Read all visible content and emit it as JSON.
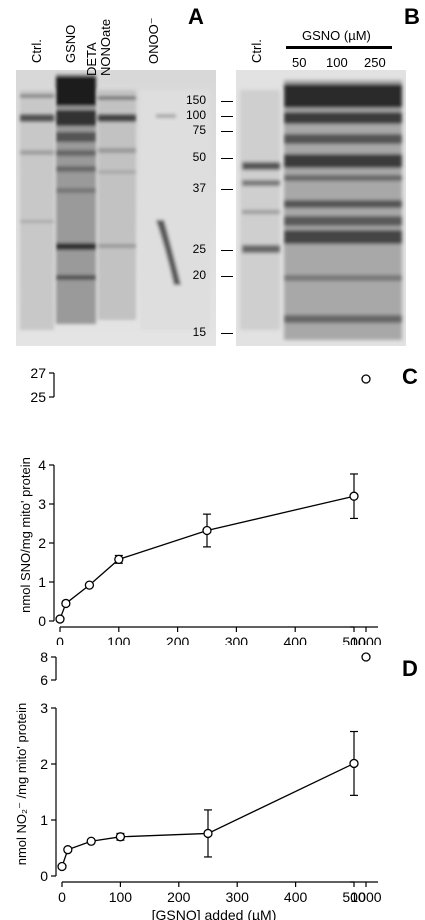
{
  "panels": {
    "a_letter": "A",
    "b_letter": "B",
    "c_letter": "C",
    "d_letter": "D"
  },
  "blot_a": {
    "lanes": [
      "Ctrl.",
      "GSNO",
      "DETA NONOate",
      "ONOO⁻"
    ]
  },
  "blot_b": {
    "ctrl_label": "Ctrl.",
    "gsno_title": "GSNO (µM)",
    "concentrations": [
      "50",
      "100",
      "250"
    ]
  },
  "markers": [
    "150",
    "100",
    "75",
    "50",
    "37",
    "25",
    "20",
    "15"
  ],
  "chart_data": [
    {
      "type": "line",
      "panel": "C",
      "ylabel": "nmol SNO/mg mito' protein",
      "xlabel": "[GSNO] added (µM)",
      "x": [
        0,
        10,
        50,
        100,
        250,
        500
      ],
      "y": [
        0.05,
        0.45,
        0.92,
        1.58,
        2.32,
        3.2
      ],
      "error": [
        0,
        0,
        0,
        0.1,
        0.42,
        0.57
      ],
      "outlier": {
        "x": 1000,
        "y": 26.5
      },
      "xticks": [
        "0",
        "100",
        "200",
        "300",
        "400",
        "500",
        "1000"
      ],
      "yticks": [
        "0",
        "1",
        "2",
        "3",
        "4"
      ],
      "ybreak_ticks": [
        "25",
        "27"
      ],
      "ylim": [
        0,
        4
      ]
    },
    {
      "type": "line",
      "panel": "D",
      "ylabel": "nmol NO₂⁻ /mg mito' protein",
      "xlabel": "[GSNO] added (µM)",
      "x": [
        0,
        10,
        50,
        100,
        250,
        500
      ],
      "y": [
        0.17,
        0.47,
        0.62,
        0.7,
        0.76,
        2.01
      ],
      "error": [
        0,
        0,
        0,
        0.06,
        0.42,
        0.57
      ],
      "outlier": {
        "x": 1000,
        "y": 8
      },
      "xticks": [
        "0",
        "100",
        "200",
        "300",
        "400",
        "500",
        "1000"
      ],
      "yticks": [
        "0",
        "1",
        "2",
        "3"
      ],
      "ybreak_ticks": [
        "6",
        "8"
      ],
      "ylim": [
        0,
        3
      ]
    }
  ]
}
